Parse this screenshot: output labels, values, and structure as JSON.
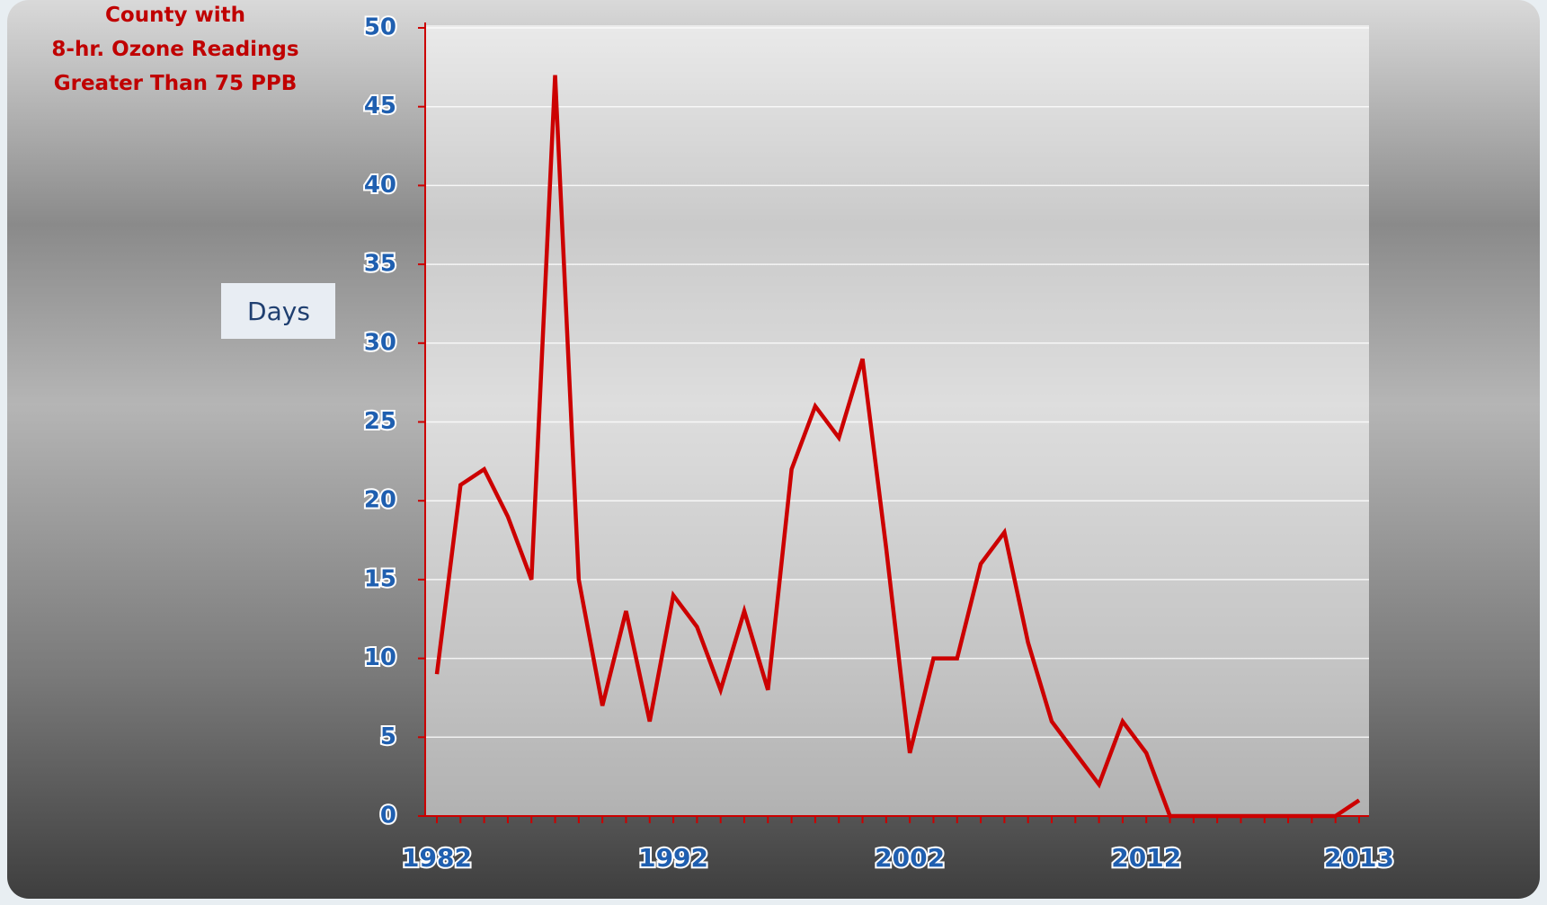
{
  "chart_data": {
    "type": "line",
    "title": [
      "County with",
      "8-hr. Ozone Readings",
      "Greater Than 75 PPB"
    ],
    "ylabel": "Days",
    "categories": [
      "1982",
      null,
      null,
      null,
      null,
      null,
      null,
      null,
      null,
      null,
      "1992",
      null,
      null,
      null,
      null,
      null,
      null,
      null,
      null,
      null,
      "2002",
      null,
      null,
      null,
      null,
      null,
      null,
      null,
      null,
      null,
      "2012",
      null,
      null,
      null,
      null,
      null,
      null,
      null,
      null,
      "2013"
    ],
    "series": [
      {
        "name": "Days",
        "color": "#cc0000",
        "values": [
          9,
          21,
          22,
          19,
          15,
          47,
          15,
          7,
          13,
          6,
          14,
          12,
          8,
          13,
          8,
          22,
          26,
          24,
          29,
          17,
          4,
          10,
          10,
          16,
          18,
          11,
          6,
          4,
          2,
          6,
          4,
          0,
          0,
          0,
          0,
          0,
          0,
          0,
          0,
          1
        ]
      }
    ],
    "ylim": [
      0,
      50
    ],
    "yticks": [
      0,
      5,
      10,
      15,
      20,
      25,
      30,
      35,
      40,
      45,
      50
    ],
    "grid": true
  }
}
